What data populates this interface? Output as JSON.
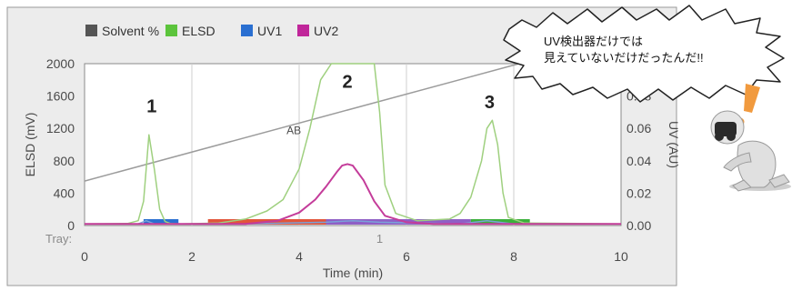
{
  "chart_data": {
    "type": "line",
    "xlabel": "Time (min)",
    "ylabel_left": "ELSD (mV)",
    "ylabel_right": "UV (AU)",
    "xlim": [
      0,
      10
    ],
    "ylim_left": [
      0,
      2000
    ],
    "ylim_right": [
      0,
      0.1
    ],
    "x_ticks": [
      "0",
      "2",
      "4",
      "6",
      "8",
      "10"
    ],
    "y_left_ticks": [
      "0",
      "400",
      "800",
      "1200",
      "1600",
      "2000"
    ],
    "y_right_ticks": [
      "0.00",
      "0.02",
      "0.04",
      "0.06",
      "0.08"
    ],
    "grid": true,
    "legend_position": "top",
    "legend": [
      {
        "label": "Solvent %",
        "color": "#555555"
      },
      {
        "label": "ELSD",
        "color": "#5cc43c"
      },
      {
        "label": "UV1",
        "color": "#2a6fd1"
      },
      {
        "label": "UV2",
        "color": "#c0269a"
      }
    ],
    "series": [
      {
        "name": "Solvent %",
        "axis": "left",
        "color": "#9c9c9c",
        "x": [
          0,
          8.1
        ],
        "y": [
          550,
          2000
        ]
      },
      {
        "name": "ELSD",
        "axis": "left",
        "color": "#9fd07f",
        "x": [
          0,
          0.8,
          1.0,
          1.1,
          1.2,
          1.3,
          1.4,
          1.5,
          1.6,
          1.8,
          2.5,
          3.0,
          3.4,
          3.7,
          4.0,
          4.2,
          4.4,
          4.6,
          4.7,
          4.75,
          5.3,
          5.4,
          5.5,
          5.6,
          5.8,
          6.2,
          6.8,
          7.0,
          7.2,
          7.4,
          7.5,
          7.6,
          7.7,
          7.8,
          7.9,
          8.2,
          10
        ],
        "y": [
          20,
          25,
          60,
          300,
          1120,
          700,
          200,
          50,
          25,
          20,
          30,
          80,
          180,
          320,
          700,
          1200,
          1800,
          2000,
          2000,
          2000,
          2000,
          2000,
          1400,
          500,
          150,
          60,
          80,
          150,
          350,
          800,
          1200,
          1300,
          1000,
          400,
          100,
          30,
          20
        ]
      },
      {
        "name": "UV1",
        "axis": "right",
        "color": "#7aa2d8",
        "x": [
          0,
          1.0,
          1.15,
          1.3,
          1.5,
          3.0,
          4.5,
          5.0,
          5.5,
          7.0,
          7.5,
          8.0,
          10
        ],
        "y": [
          0.001,
          0.001,
          0.003,
          0.001,
          0.001,
          0.001,
          0.002,
          0.003,
          0.002,
          0.001,
          0.003,
          0.001,
          0.001
        ]
      },
      {
        "name": "UV2",
        "axis": "right",
        "color": "#c43c9a",
        "x": [
          0,
          3.0,
          3.6,
          4.0,
          4.3,
          4.5,
          4.7,
          4.8,
          4.9,
          5.0,
          5.2,
          5.4,
          5.6,
          6.0,
          6.5,
          10
        ],
        "y": [
          0.001,
          0.001,
          0.003,
          0.008,
          0.016,
          0.024,
          0.033,
          0.037,
          0.038,
          0.037,
          0.028,
          0.015,
          0.006,
          0.002,
          0.001,
          0.001
        ]
      }
    ],
    "fraction_bars": [
      {
        "x0": 1.1,
        "x1": 1.75,
        "color": "#2a6fd1"
      },
      {
        "x0": 2.3,
        "x1": 4.5,
        "color": "#e2553b"
      },
      {
        "x0": 4.5,
        "x1": 7.2,
        "color": "#8f5fc6"
      },
      {
        "x0": 7.2,
        "x1": 8.3,
        "color": "#3bb03b"
      }
    ],
    "peak_labels": [
      {
        "text": "1",
        "x": 1.25,
        "y": 1400
      },
      {
        "text": "2",
        "x": 4.9,
        "y": 1700
      },
      {
        "text": "3",
        "x": 7.55,
        "y": 1450
      }
    ],
    "annotations": [
      {
        "text": "AB",
        "x": 3.9,
        "y": 1130
      }
    ],
    "tray": {
      "label": "Tray:",
      "value": "1",
      "x": 5.5
    }
  },
  "speech_bubble": {
    "line1": "UV検出器だけでは",
    "line2": "見えていないだけだったんだ!!"
  }
}
